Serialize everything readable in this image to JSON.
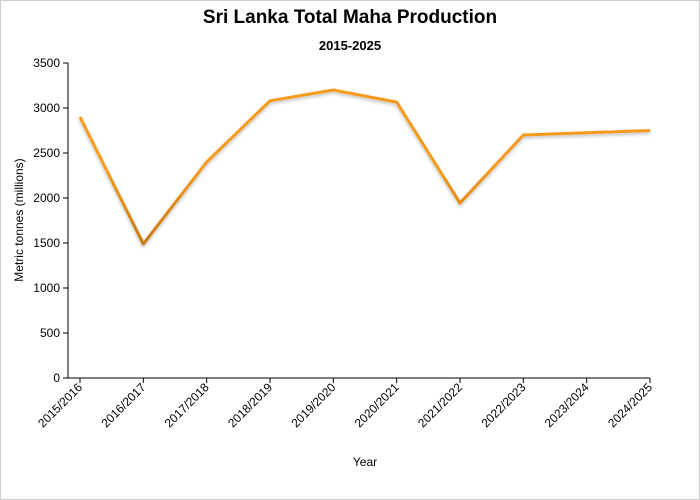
{
  "chart_data": {
    "type": "line",
    "title": "Sri Lanka Total Maha Production",
    "subtitle": "2015-2025",
    "xlabel": "Year",
    "ylabel": "Metric tonnes (millions)",
    "categories": [
      "2015/2016",
      "2016/2017",
      "2017/2018",
      "2018/2019",
      "2019/2020",
      "2020/2021",
      "2021/2022",
      "2022/2023",
      "2023/2024",
      "2024/2025"
    ],
    "series": [
      {
        "values": [
          2900,
          1490,
          2400,
          3080,
          3200,
          3065,
          1945,
          2700,
          2725,
          2750
        ]
      }
    ],
    "yticks": [
      0,
      500,
      1000,
      1500,
      2000,
      2500,
      3000,
      3500
    ],
    "ylim": [
      0,
      3500
    ],
    "grid": false,
    "colors": {
      "line_top": "#f59a1c",
      "line_bottom": "#c07512",
      "axis": "#000000"
    }
  }
}
